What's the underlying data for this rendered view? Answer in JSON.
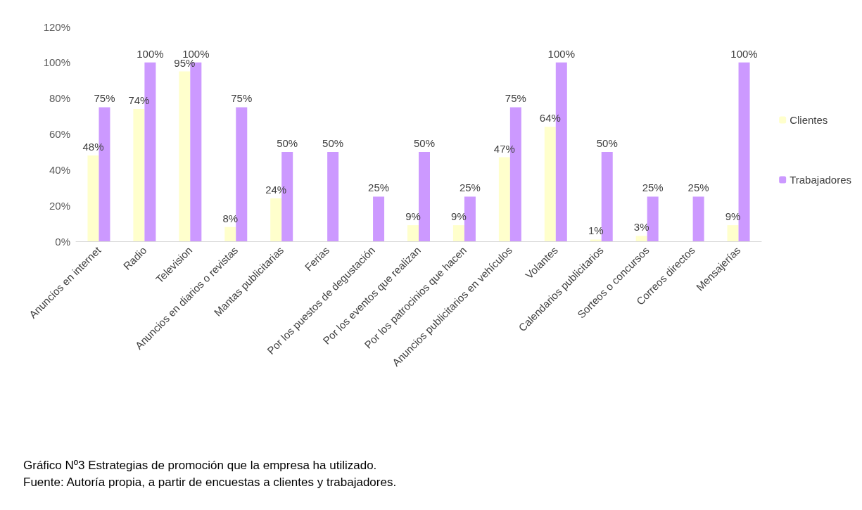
{
  "chart_data": {
    "type": "bar",
    "categories": [
      "Anuncios en internet",
      "Radio",
      "Television",
      "Anuncios en diarios o revistas",
      "Mantas publicitarias",
      "Ferias",
      "Por los puestos de degustación",
      "Por los eventos que realizan",
      "Por los patrocinios que hacen",
      "Anuncios publicitarios en vehículos",
      "Volantes",
      "Calendarios publicitarios",
      "Sorteos o concursos",
      "Correos directos",
      "Mensajerías"
    ],
    "series": [
      {
        "name": "Clientes",
        "color": "#ffffcc",
        "values": [
          48,
          74,
          95,
          8,
          24,
          0,
          0,
          9,
          9,
          47,
          64,
          1,
          3,
          0,
          9
        ],
        "value_labels": [
          "48%",
          "74%",
          "95%",
          "8%",
          "24%",
          null,
          null,
          "9%",
          "9%",
          "47%",
          "64%",
          "1%",
          "3%",
          null,
          "9%"
        ]
      },
      {
        "name": "Trabajadores",
        "color": "#cc99ff",
        "values": [
          75,
          100,
          100,
          75,
          50,
          50,
          25,
          50,
          25,
          75,
          100,
          50,
          25,
          25,
          100
        ],
        "value_labels": [
          "75%",
          "100%",
          "100%",
          "75%",
          "50%",
          "50%",
          "25%",
          "50%",
          "25%",
          "75%",
          "100%",
          "50%",
          "25%",
          "25%",
          "100%"
        ]
      }
    ],
    "ylim": [
      0,
      120
    ],
    "yticks": [
      {
        "value": 0,
        "label": "0%"
      },
      {
        "value": 20,
        "label": "20%"
      },
      {
        "value": 40,
        "label": "40%"
      },
      {
        "value": 60,
        "label": "60%"
      },
      {
        "value": 80,
        "label": "80%"
      },
      {
        "value": 100,
        "label": "100%"
      },
      {
        "value": 120,
        "label": "120%"
      }
    ],
    "legend": "right",
    "annotations": [
      "Gráfico Nº3 Estrategias de promoción que la empresa ha utilizado.",
      "Fuente: Autoría propia, a partir de encuestas a clientes y trabajadores."
    ]
  }
}
